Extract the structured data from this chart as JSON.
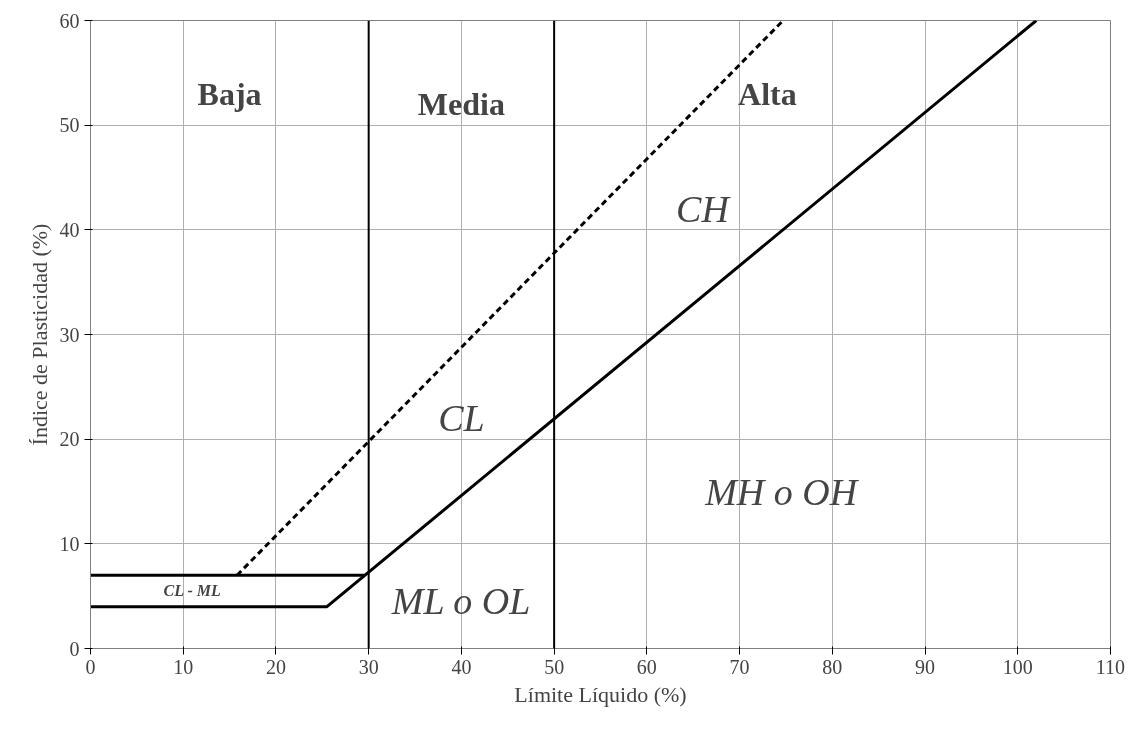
{
  "chart_data": {
    "type": "line",
    "xlabel": "Límite Líquido (%)",
    "ylabel": "Índice de Plasticidad (%)",
    "xlim": [
      0,
      110
    ],
    "ylim": [
      0,
      60
    ],
    "xticks": [
      0,
      10,
      20,
      30,
      40,
      50,
      60,
      70,
      80,
      90,
      100,
      110
    ],
    "yticks": [
      0,
      10,
      20,
      30,
      40,
      50,
      60
    ],
    "grid": true,
    "marker": "none",
    "series": [
      {
        "color": "#000000",
        "x": [
          0,
          25.5,
          102
        ],
        "values": [
          4,
          4,
          60
        ],
        "line_style": "solid"
      },
      {
        "color": "#000000",
        "x": [
          0,
          29.6
        ],
        "values": [
          7,
          7
        ],
        "line_style": "solid"
      },
      {
        "color": "#000000",
        "x": [
          15.8,
          74.7
        ],
        "values": [
          7,
          60
        ],
        "line_style": "dashed"
      }
    ],
    "ref_lines": [
      {
        "axis": "x",
        "value": 30,
        "color": "#000000"
      },
      {
        "axis": "x",
        "value": 50,
        "color": "#000000"
      }
    ],
    "annotations": [
      "Baja",
      "Media",
      "Alta",
      "CH",
      "CL",
      "MH  o OH",
      "ML o OL",
      "CL - ML"
    ]
  }
}
